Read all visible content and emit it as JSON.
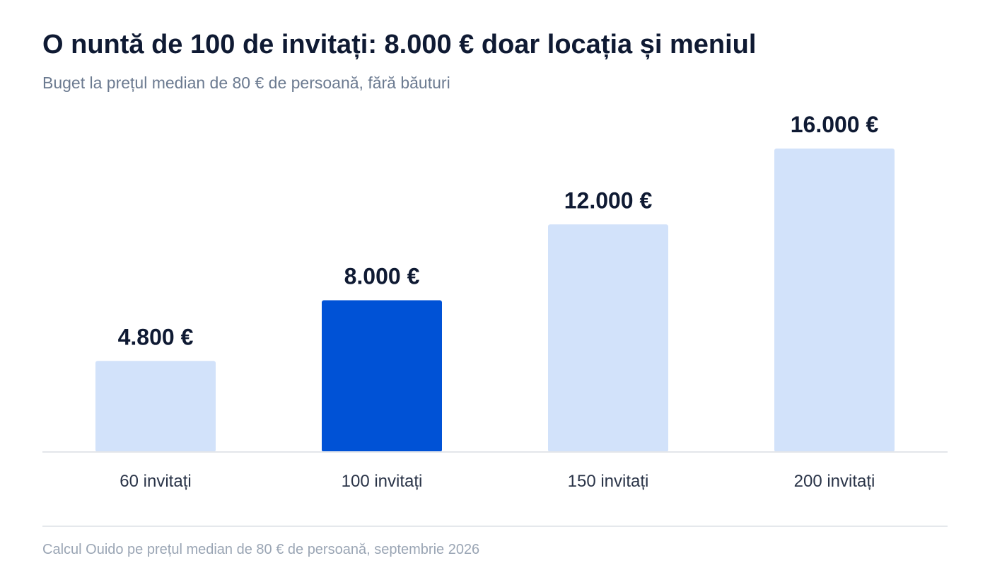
{
  "header": {
    "title": "O nuntă de 100 de invitați: 8.000 € doar locația și meniul",
    "subtitle": "Buget la prețul median de 80 € de persoană, fără băuturi"
  },
  "chart_data": {
    "type": "bar",
    "categories": [
      "60 invitați",
      "100 invitați",
      "150 invitați",
      "200 invitați"
    ],
    "values": [
      4800,
      8000,
      12000,
      16000
    ],
    "value_labels": [
      "4.800 €",
      "8.000 €",
      "12.000 €",
      "16.000 €"
    ],
    "highlight_index": 1,
    "ylim": [
      0,
      16000
    ],
    "grid": false,
    "colors": {
      "bar": "#d2e2fa",
      "highlight": "#0052d6",
      "baseline": "#e3e6ea"
    }
  },
  "footer": {
    "source": "Calcul Ouido pe prețul median de 80 € de persoană, septembrie 2026"
  }
}
